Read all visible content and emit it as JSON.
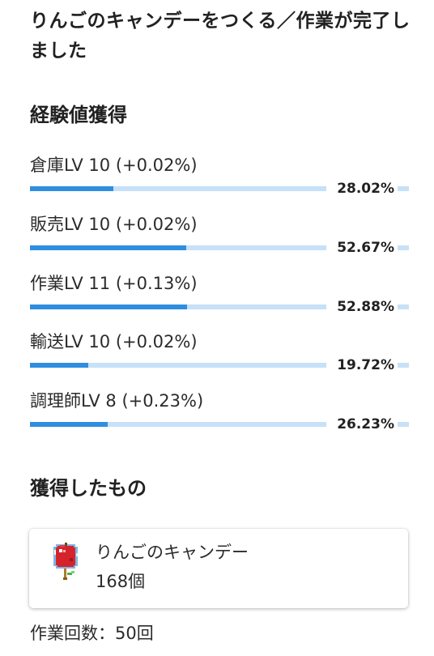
{
  "header": {
    "title": "りんごのキャンデーをつくる／作業が完了しました"
  },
  "experience": {
    "heading": "経験値獲得",
    "skills": [
      {
        "label": "倉庫LV 10 (+0.02%)",
        "percent_text": "28.02%",
        "progress": 28.02
      },
      {
        "label": "販売LV 10 (+0.02%)",
        "percent_text": "52.67%",
        "progress": 52.67
      },
      {
        "label": "作業LV 11 (+0.13%)",
        "percent_text": "52.88%",
        "progress": 52.88
      },
      {
        "label": "輸送LV 10 (+0.02%)",
        "percent_text": "19.72%",
        "progress": 19.72
      },
      {
        "label": "調理師LV 8 (+0.23%)",
        "percent_text": "26.23%",
        "progress": 26.23
      }
    ]
  },
  "obtained": {
    "heading": "獲得したもの",
    "item": {
      "icon": "apple-candy-icon",
      "name": "りんごのキャンデー",
      "count": "168個"
    }
  },
  "work_count": "作業回数：50回",
  "colors": {
    "bar_fill": "#2f8ee0",
    "bar_track": "#c6e1f8"
  }
}
